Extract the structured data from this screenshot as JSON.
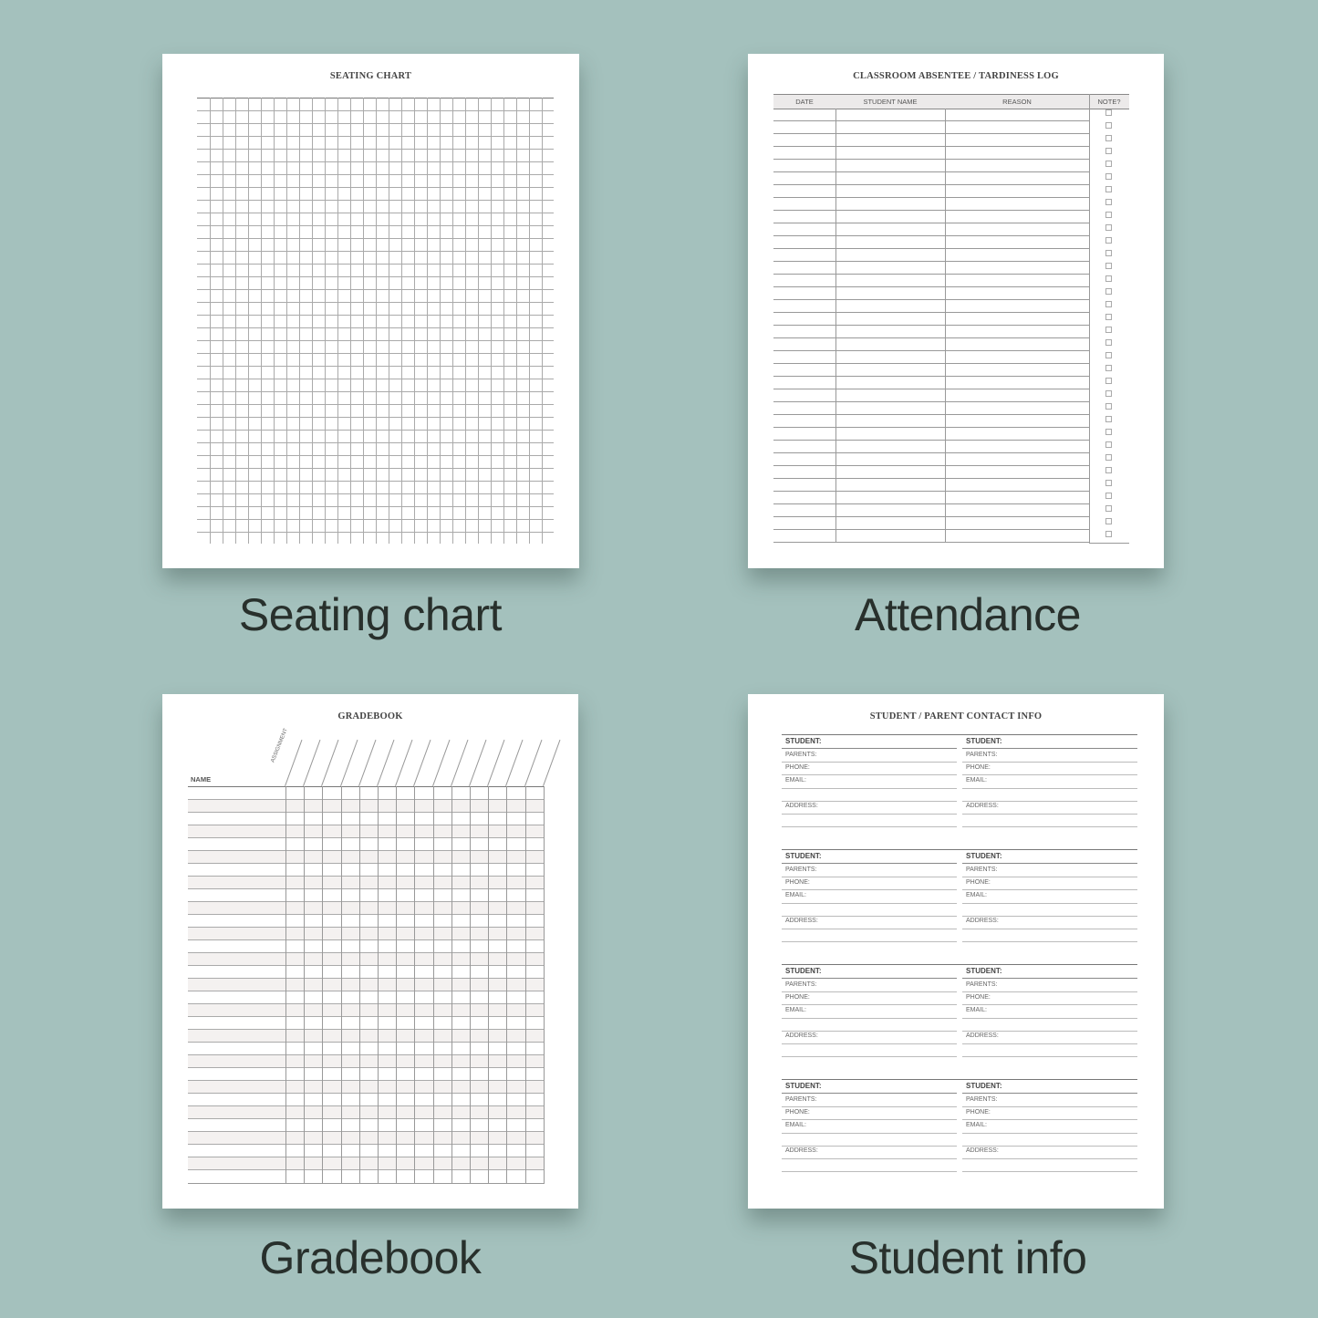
{
  "background_color": "#a4c1bd",
  "panels": {
    "seating": {
      "page_title": "SEATING CHART",
      "caption": "Seating chart"
    },
    "attendance": {
      "page_title": "CLASSROOM ABSENTEE / TARDINESS LOG",
      "caption": "Attendance",
      "columns": [
        "DATE",
        "STUDENT NAME",
        "REASON",
        "NOTE?"
      ]
    },
    "gradebook": {
      "page_title": "GRADEBOOK",
      "caption": "Gradebook",
      "name_header": "NAME",
      "assignment_header": "ASSIGNMENT"
    },
    "student_info": {
      "page_title": "STUDENT / PARENT CONTACT INFO",
      "caption": "Student info",
      "labels": {
        "student": "STUDENT:",
        "parents": "PARENTS:",
        "phone": "PHONE:",
        "email": "EMAIL:",
        "address": "ADDRESS:"
      }
    }
  }
}
